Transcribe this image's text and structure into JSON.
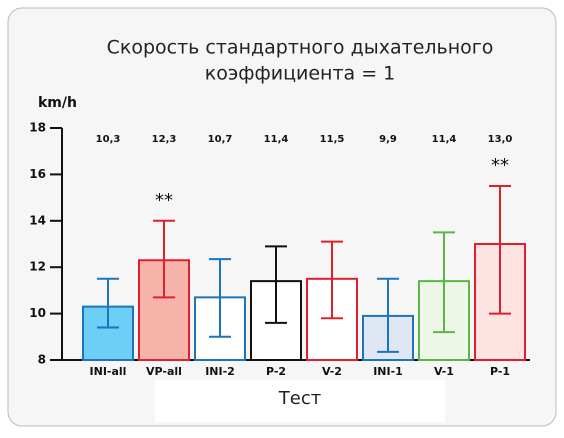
{
  "chart_data": {
    "type": "bar",
    "title": [
      "Скорость стандартного дыхательного",
      "коэффициента = 1"
    ],
    "y_label": "km/h",
    "x_label": "Тест",
    "categories": [
      "INI-all",
      "VP-all",
      "INI-2",
      "P-2",
      "V-2",
      "INI-1",
      "V-1",
      "P-1"
    ],
    "values": [
      10.3,
      12.3,
      10.7,
      11.4,
      11.5,
      9.9,
      11.4,
      13.0
    ],
    "value_labels": [
      "10,3",
      "12,3",
      "10,7",
      "11,4",
      "11,5",
      "9,9",
      "11,4",
      "13,0"
    ],
    "err_low": [
      9.4,
      10.7,
      9.0,
      9.6,
      9.8,
      8.35,
      9.2,
      10.0
    ],
    "err_high": [
      11.5,
      14.0,
      12.35,
      12.9,
      13.1,
      11.5,
      13.5,
      15.5
    ],
    "fills": [
      "#6dcff6",
      "#f6b3aa",
      "#ffffff",
      "#ffffff",
      "#ffffff",
      "#dfe6f4",
      "#eef6e7",
      "#fde4e3"
    ],
    "strokes": [
      "#1c75bc",
      "#e0202e",
      "#1c75bc",
      "#111111",
      "#e0202e",
      "#1c75bc",
      "#5ab746",
      "#e0202e"
    ],
    "annotations": [
      {
        "text": "**",
        "category": "VP-all"
      },
      {
        "text": "**",
        "category": "P-1"
      }
    ],
    "ylim": [
      8,
      18
    ],
    "yticks": [
      8,
      10,
      12,
      14,
      16,
      18
    ]
  }
}
